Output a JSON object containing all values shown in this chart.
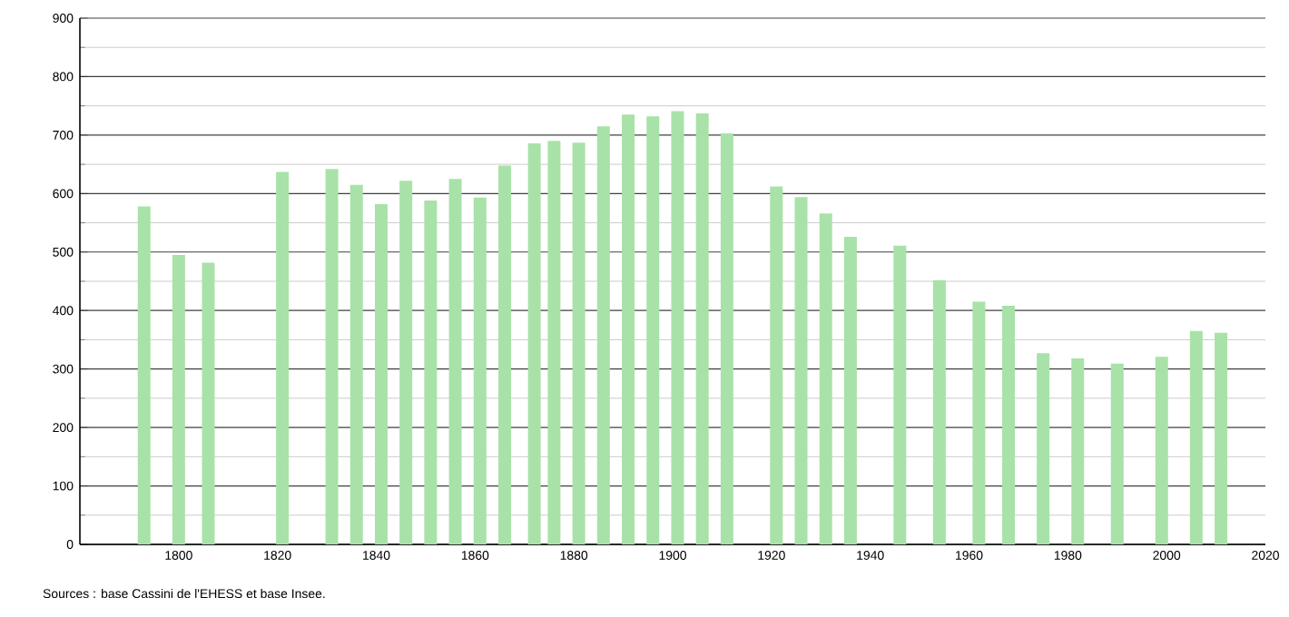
{
  "chart_data": {
    "type": "bar",
    "x": [
      1793,
      1800,
      1806,
      1821,
      1831,
      1836,
      1841,
      1846,
      1851,
      1856,
      1861,
      1866,
      1872,
      1876,
      1881,
      1886,
      1891,
      1896,
      1901,
      1906,
      1911,
      1921,
      1926,
      1931,
      1936,
      1946,
      1954,
      1962,
      1968,
      1975,
      1982,
      1990,
      1999,
      2006,
      2011
    ],
    "values": [
      578,
      495,
      482,
      637,
      642,
      615,
      582,
      622,
      588,
      625,
      593,
      648,
      686,
      690,
      687,
      715,
      735,
      732,
      741,
      737,
      703,
      612,
      594,
      566,
      526,
      511,
      452,
      415,
      408,
      327,
      318,
      309,
      321,
      365,
      362
    ],
    "color": "#a8e2a8",
    "xlim": [
      1780,
      2020
    ],
    "xticks": [
      1800,
      1820,
      1840,
      1860,
      1880,
      1900,
      1920,
      1940,
      1960,
      1980,
      2000,
      2020
    ],
    "ylim": [
      0,
      900
    ],
    "yticks": [
      0,
      100,
      200,
      300,
      400,
      500,
      600,
      700,
      800,
      900
    ],
    "grid": "y",
    "annotations": [
      "Sources : base Cassini de l'EHESS et base Insee."
    ]
  }
}
